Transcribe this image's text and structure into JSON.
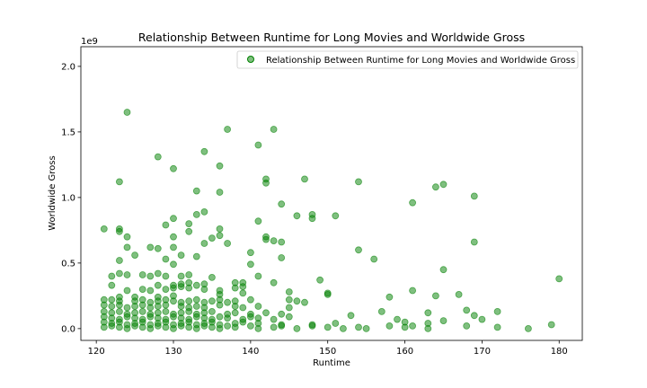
{
  "chart_data": {
    "type": "scatter",
    "title": "Relationship Between Runtime for Long Movies and Worldwide Gross",
    "xlabel": "Runtime",
    "ylabel": "Worldwide Gross",
    "y_scale_note": "1e9",
    "xlim": [
      118,
      183
    ],
    "ylim": [
      -0.09,
      2.15
    ],
    "x_ticks": [
      120,
      130,
      140,
      150,
      160,
      170,
      180
    ],
    "x_tick_labels": [
      "120",
      "130",
      "140",
      "150",
      "160",
      "170",
      "180"
    ],
    "y_ticks": [
      0.0,
      0.5,
      1.0,
      1.5,
      2.0
    ],
    "y_tick_labels": [
      "0.0",
      "0.5",
      "1.0",
      "1.5",
      "2.0"
    ],
    "grid": false,
    "legend": {
      "position": "top-right",
      "entries": [
        "Relationship Between Runtime for Long Movies and Worldwide Gross"
      ]
    },
    "colors": {
      "marker": "#008000",
      "marker_opacity": 0.5
    },
    "series": [
      {
        "name": "Relationship Between Runtime for Long Movies and Worldwide Gross",
        "points": [
          [
            124,
            1.65
          ],
          [
            137,
            1.52
          ],
          [
            143,
            1.52
          ],
          [
            141,
            1.4
          ],
          [
            134,
            1.35
          ],
          [
            128,
            1.31
          ],
          [
            136,
            1.24
          ],
          [
            130,
            1.22
          ],
          [
            147,
            1.14
          ],
          [
            142,
            1.14
          ],
          [
            142,
            1.11
          ],
          [
            154,
            1.12
          ],
          [
            123,
            1.12
          ],
          [
            165,
            1.1
          ],
          [
            164,
            1.08
          ],
          [
            133,
            1.05
          ],
          [
            136,
            1.04
          ],
          [
            169,
            1.01
          ],
          [
            161,
            0.96
          ],
          [
            144,
            0.95
          ],
          [
            134,
            0.89
          ],
          [
            133,
            0.87
          ],
          [
            148,
            0.87
          ],
          [
            146,
            0.86
          ],
          [
            151,
            0.86
          ],
          [
            130,
            0.84
          ],
          [
            148,
            0.84
          ],
          [
            141,
            0.82
          ],
          [
            132,
            0.8
          ],
          [
            129,
            0.79
          ],
          [
            121,
            0.76
          ],
          [
            123,
            0.76
          ],
          [
            136,
            0.76
          ],
          [
            123,
            0.74
          ],
          [
            132,
            0.74
          ],
          [
            124,
            0.7
          ],
          [
            130,
            0.7
          ],
          [
            136,
            0.71
          ],
          [
            142,
            0.7
          ],
          [
            135,
            0.69
          ],
          [
            142,
            0.68
          ],
          [
            143,
            0.67
          ],
          [
            144,
            0.66
          ],
          [
            169,
            0.66
          ],
          [
            134,
            0.65
          ],
          [
            137,
            0.65
          ],
          [
            128,
            0.61
          ],
          [
            127,
            0.62
          ],
          [
            130,
            0.62
          ],
          [
            124,
            0.62
          ],
          [
            154,
            0.6
          ],
          [
            140,
            0.58
          ],
          [
            125,
            0.56
          ],
          [
            131,
            0.56
          ],
          [
            133,
            0.55
          ],
          [
            144,
            0.54
          ],
          [
            156,
            0.53
          ],
          [
            129,
            0.53
          ],
          [
            123,
            0.52
          ],
          [
            130,
            0.49
          ],
          [
            140,
            0.49
          ],
          [
            165,
            0.45
          ],
          [
            122,
            0.4
          ],
          [
            123,
            0.42
          ],
          [
            124,
            0.41
          ],
          [
            126,
            0.41
          ],
          [
            127,
            0.4
          ],
          [
            128,
            0.42
          ],
          [
            129,
            0.4
          ],
          [
            131,
            0.4
          ],
          [
            132,
            0.41
          ],
          [
            135,
            0.39
          ],
          [
            141,
            0.4
          ],
          [
            180,
            0.38
          ],
          [
            149,
            0.37
          ],
          [
            138,
            0.35
          ],
          [
            139,
            0.35
          ],
          [
            143,
            0.35
          ],
          [
            128,
            0.33
          ],
          [
            130,
            0.33
          ],
          [
            131,
            0.34
          ],
          [
            132,
            0.35
          ],
          [
            133,
            0.33
          ],
          [
            134,
            0.34
          ],
          [
            122,
            0.33
          ],
          [
            124,
            0.29
          ],
          [
            126,
            0.3
          ],
          [
            127,
            0.29
          ],
          [
            129,
            0.3
          ],
          [
            130,
            0.31
          ],
          [
            131,
            0.32
          ],
          [
            132,
            0.31
          ],
          [
            134,
            0.3
          ],
          [
            136,
            0.29
          ],
          [
            138,
            0.31
          ],
          [
            139,
            0.32
          ],
          [
            145,
            0.28
          ],
          [
            161,
            0.29
          ],
          [
            167,
            0.26
          ],
          [
            164,
            0.25
          ],
          [
            150,
            0.27
          ],
          [
            150,
            0.26
          ],
          [
            139,
            0.27
          ],
          [
            136,
            0.26
          ],
          [
            130,
            0.25
          ],
          [
            128,
            0.24
          ],
          [
            125,
            0.24
          ],
          [
            123,
            0.24
          ],
          [
            121,
            0.22
          ],
          [
            122,
            0.22
          ],
          [
            123,
            0.21
          ],
          [
            125,
            0.21
          ],
          [
            126,
            0.22
          ],
          [
            127,
            0.2
          ],
          [
            128,
            0.21
          ],
          [
            129,
            0.22
          ],
          [
            130,
            0.21
          ],
          [
            131,
            0.2
          ],
          [
            132,
            0.21
          ],
          [
            133,
            0.22
          ],
          [
            134,
            0.2
          ],
          [
            135,
            0.21
          ],
          [
            136,
            0.22
          ],
          [
            137,
            0.2
          ],
          [
            138,
            0.21
          ],
          [
            140,
            0.22
          ],
          [
            145,
            0.22
          ],
          [
            146,
            0.21
          ],
          [
            147,
            0.2
          ],
          [
            158,
            0.24
          ],
          [
            121,
            0.18
          ],
          [
            122,
            0.17
          ],
          [
            123,
            0.18
          ],
          [
            124,
            0.16
          ],
          [
            125,
            0.17
          ],
          [
            126,
            0.18
          ],
          [
            127,
            0.16
          ],
          [
            128,
            0.17
          ],
          [
            129,
            0.18
          ],
          [
            131,
            0.17
          ],
          [
            132,
            0.16
          ],
          [
            133,
            0.17
          ],
          [
            134,
            0.16
          ],
          [
            136,
            0.18
          ],
          [
            138,
            0.17
          ],
          [
            139,
            0.16
          ],
          [
            141,
            0.17
          ],
          [
            145,
            0.16
          ],
          [
            121,
            0.13
          ],
          [
            122,
            0.12
          ],
          [
            123,
            0.13
          ],
          [
            124,
            0.11
          ],
          [
            125,
            0.12
          ],
          [
            126,
            0.13
          ],
          [
            127,
            0.11
          ],
          [
            128,
            0.12
          ],
          [
            129,
            0.13
          ],
          [
            130,
            0.11
          ],
          [
            131,
            0.12
          ],
          [
            132,
            0.13
          ],
          [
            133,
            0.11
          ],
          [
            134,
            0.12
          ],
          [
            135,
            0.13
          ],
          [
            137,
            0.11
          ],
          [
            138,
            0.12
          ],
          [
            140,
            0.11
          ],
          [
            142,
            0.12
          ],
          [
            144,
            0.11
          ],
          [
            157,
            0.13
          ],
          [
            163,
            0.12
          ],
          [
            168,
            0.14
          ],
          [
            172,
            0.13
          ],
          [
            169,
            0.1
          ],
          [
            153,
            0.1
          ],
          [
            121,
            0.09
          ],
          [
            122,
            0.08
          ],
          [
            123,
            0.07
          ],
          [
            124,
            0.09
          ],
          [
            125,
            0.08
          ],
          [
            126,
            0.07
          ],
          [
            127,
            0.09
          ],
          [
            128,
            0.08
          ],
          [
            129,
            0.07
          ],
          [
            130,
            0.09
          ],
          [
            131,
            0.08
          ],
          [
            132,
            0.07
          ],
          [
            133,
            0.09
          ],
          [
            134,
            0.08
          ],
          [
            135,
            0.07
          ],
          [
            136,
            0.09
          ],
          [
            137,
            0.08
          ],
          [
            139,
            0.07
          ],
          [
            140,
            0.09
          ],
          [
            141,
            0.08
          ],
          [
            143,
            0.07
          ],
          [
            145,
            0.09
          ],
          [
            159,
            0.07
          ],
          [
            165,
            0.06
          ],
          [
            170,
            0.07
          ],
          [
            121,
            0.05
          ],
          [
            122,
            0.04
          ],
          [
            123,
            0.05
          ],
          [
            124,
            0.03
          ],
          [
            125,
            0.04
          ],
          [
            126,
            0.05
          ],
          [
            127,
            0.03
          ],
          [
            128,
            0.04
          ],
          [
            129,
            0.05
          ],
          [
            130,
            0.03
          ],
          [
            131,
            0.04
          ],
          [
            132,
            0.05
          ],
          [
            133,
            0.03
          ],
          [
            134,
            0.04
          ],
          [
            135,
            0.05
          ],
          [
            136,
            0.03
          ],
          [
            138,
            0.04
          ],
          [
            139,
            0.05
          ],
          [
            141,
            0.04
          ],
          [
            144,
            0.03
          ],
          [
            148,
            0.03
          ],
          [
            151,
            0.04
          ],
          [
            160,
            0.05
          ],
          [
            163,
            0.04
          ],
          [
            121,
            0.01
          ],
          [
            122,
            0.02
          ],
          [
            123,
            0.01
          ],
          [
            124,
            0.0
          ],
          [
            125,
            0.02
          ],
          [
            126,
            0.01
          ],
          [
            127,
            0.0
          ],
          [
            128,
            0.02
          ],
          [
            129,
            0.01
          ],
          [
            130,
            0.0
          ],
          [
            131,
            0.02
          ],
          [
            132,
            0.01
          ],
          [
            133,
            0.0
          ],
          [
            134,
            0.02
          ],
          [
            135,
            0.01
          ],
          [
            136,
            0.0
          ],
          [
            137,
            0.02
          ],
          [
            138,
            0.01
          ],
          [
            140,
            0.02
          ],
          [
            141,
            0.0
          ],
          [
            143,
            0.01
          ],
          [
            144,
            0.02
          ],
          [
            146,
            0.0
          ],
          [
            148,
            0.02
          ],
          [
            150,
            0.01
          ],
          [
            152,
            0.0
          ],
          [
            154,
            0.01
          ],
          [
            155,
            0.0
          ],
          [
            158,
            0.02
          ],
          [
            160,
            0.01
          ],
          [
            161,
            0.02
          ],
          [
            163,
            0.0
          ],
          [
            168,
            0.02
          ],
          [
            172,
            0.01
          ],
          [
            176,
            0.0
          ],
          [
            179,
            0.03
          ]
        ]
      }
    ]
  }
}
